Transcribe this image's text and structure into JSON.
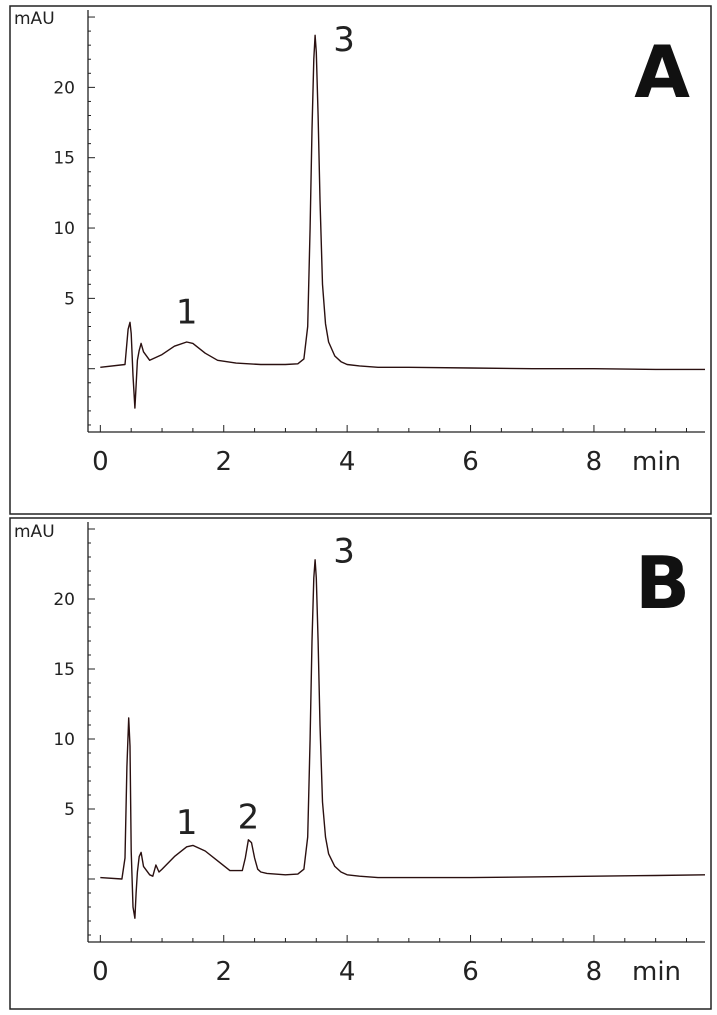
{
  "chart_data": [
    {
      "type": "line",
      "panel_label": "A",
      "ylabel": "mAU",
      "xlabel": "min",
      "xlim": [
        -0.2,
        9.8
      ],
      "ylim": [
        -4.5,
        25.5
      ],
      "x_ticks": [
        0,
        2,
        4,
        6,
        8
      ],
      "y_ticks": [
        5,
        10,
        15,
        20
      ],
      "series": [
        {
          "color": "#2a1010",
          "x": [
            0,
            0.4,
            0.45,
            0.48,
            0.5,
            0.53,
            0.56,
            0.58,
            0.6,
            0.63,
            0.66,
            0.7,
            0.8,
            1.0,
            1.2,
            1.4,
            1.5,
            1.7,
            1.9,
            2.2,
            2.6,
            3.0,
            3.2,
            3.3,
            3.36,
            3.4,
            3.43,
            3.46,
            3.48,
            3.5,
            3.53,
            3.56,
            3.6,
            3.65,
            3.7,
            3.8,
            3.9,
            4.0,
            4.2,
            4.5,
            5,
            6,
            7,
            8,
            9,
            9.8
          ],
          "y": [
            0.1,
            0.3,
            2.8,
            3.3,
            2.5,
            -0.5,
            -2.8,
            -1.2,
            0.6,
            1.3,
            1.8,
            1.2,
            0.6,
            1.0,
            1.6,
            1.9,
            1.8,
            1.1,
            0.6,
            0.4,
            0.3,
            0.3,
            0.35,
            0.7,
            3.0,
            10.0,
            17.0,
            22.0,
            23.7,
            22.5,
            18.0,
            12.0,
            6.0,
            3.2,
            1.9,
            0.9,
            0.5,
            0.3,
            0.2,
            0.1,
            0.1,
            0.05,
            0.0,
            0.0,
            -0.05,
            -0.05
          ]
        }
      ],
      "annotations": [
        {
          "text": "1",
          "x": 1.4,
          "y": 3.2
        },
        {
          "text": "3",
          "x": 3.95,
          "y": 22.6
        }
      ]
    },
    {
      "type": "line",
      "panel_label": "B",
      "ylabel": "mAU",
      "xlabel": "min",
      "xlim": [
        -0.2,
        9.8
      ],
      "ylim": [
        -4.5,
        25.5
      ],
      "x_ticks": [
        0,
        2,
        4,
        6,
        8
      ],
      "y_ticks": [
        5,
        10,
        15,
        20
      ],
      "series": [
        {
          "color": "#2a1010",
          "x": [
            0,
            0.35,
            0.4,
            0.43,
            0.46,
            0.48,
            0.5,
            0.53,
            0.56,
            0.58,
            0.6,
            0.63,
            0.66,
            0.7,
            0.8,
            0.85,
            0.9,
            0.95,
            1.0,
            1.2,
            1.4,
            1.5,
            1.7,
            1.9,
            2.1,
            2.3,
            2.35,
            2.4,
            2.45,
            2.5,
            2.55,
            2.6,
            2.7,
            3.0,
            3.2,
            3.3,
            3.36,
            3.4,
            3.43,
            3.46,
            3.48,
            3.5,
            3.53,
            3.56,
            3.6,
            3.65,
            3.7,
            3.8,
            3.9,
            4.0,
            4.2,
            4.5,
            5,
            6,
            7,
            8,
            9,
            9.8
          ],
          "y": [
            0.1,
            0.0,
            1.5,
            8.0,
            11.5,
            9.5,
            2.0,
            -2.0,
            -2.8,
            -1.0,
            0.5,
            1.6,
            1.9,
            0.9,
            0.3,
            0.2,
            1.0,
            0.5,
            0.7,
            1.6,
            2.3,
            2.4,
            2.0,
            1.3,
            0.6,
            0.6,
            1.5,
            2.8,
            2.6,
            1.5,
            0.7,
            0.5,
            0.4,
            0.3,
            0.35,
            0.7,
            3.0,
            10.0,
            17.0,
            21.5,
            22.8,
            21.5,
            17.0,
            11.0,
            5.5,
            3.0,
            1.8,
            0.9,
            0.5,
            0.3,
            0.2,
            0.1,
            0.1,
            0.1,
            0.15,
            0.2,
            0.25,
            0.3
          ]
        }
      ],
      "annotations": [
        {
          "text": "1",
          "x": 1.4,
          "y": 3.2
        },
        {
          "text": "2",
          "x": 2.4,
          "y": 3.6
        },
        {
          "text": "3",
          "x": 3.95,
          "y": 22.6
        }
      ]
    }
  ]
}
